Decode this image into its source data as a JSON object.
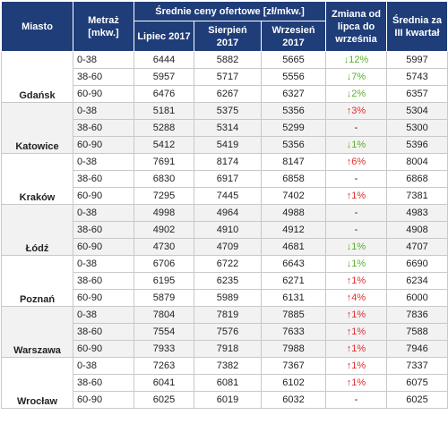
{
  "header": {
    "city": "Miasto",
    "size": "Metraż [mkw.]",
    "prices_group": "Średnie ceny ofertowe [zł/mkw.]",
    "months": [
      "Lipiec 2017",
      "Sierpień 2017",
      "Wrzesień 2017"
    ],
    "change": "Zmiana od lipca do września",
    "average": "Średnia za III kwartał"
  },
  "table": {
    "cities": [
      {
        "name": "Gdańsk",
        "rows": [
          [
            "0-38",
            6444,
            5882,
            5665,
            "↓12%",
            5997
          ],
          [
            "38-60",
            5957,
            5717,
            5556,
            "↓7%",
            5743
          ],
          [
            "60-90",
            6476,
            6267,
            6327,
            "↓2%",
            6357
          ]
        ]
      },
      {
        "name": "Katowice",
        "rows": [
          [
            "0-38",
            5181,
            5375,
            5356,
            "↑3%",
            5304
          ],
          [
            "38-60",
            5288,
            5314,
            5299,
            "-",
            5300
          ],
          [
            "60-90",
            5412,
            5419,
            5356,
            "↓1%",
            5396
          ]
        ]
      },
      {
        "name": "Kraków",
        "rows": [
          [
            "0-38",
            7691,
            8174,
            8147,
            "↑6%",
            8004
          ],
          [
            "38-60",
            6830,
            6917,
            6858,
            "-",
            6868
          ],
          [
            "60-90",
            7295,
            7445,
            7402,
            "↑1%",
            7381
          ]
        ]
      },
      {
        "name": "Łódź",
        "rows": [
          [
            "0-38",
            4998,
            4964,
            4988,
            "-",
            4983
          ],
          [
            "38-60",
            4902,
            4910,
            4912,
            "-",
            4908
          ],
          [
            "60-90",
            4730,
            4709,
            4681,
            "↓1%",
            4707
          ]
        ]
      },
      {
        "name": "Poznań",
        "rows": [
          [
            "0-38",
            6706,
            6722,
            6643,
            "↓1%",
            6690
          ],
          [
            "38-60",
            6195,
            6235,
            6271,
            "↑1%",
            6234
          ],
          [
            "60-90",
            5879,
            5989,
            6131,
            "↑4%",
            6000
          ]
        ]
      },
      {
        "name": "Warszawa",
        "rows": [
          [
            "0-38",
            7804,
            7819,
            7885,
            "↑1%",
            7836
          ],
          [
            "38-60",
            7554,
            7576,
            7633,
            "↑1%",
            7588
          ],
          [
            "60-90",
            7933,
            7918,
            7988,
            "↑1%",
            7946
          ]
        ]
      },
      {
        "name": "Wrocław",
        "rows": [
          [
            "0-38",
            7263,
            7382,
            7367,
            "↑1%",
            7337
          ],
          [
            "38-60",
            6041,
            6081,
            6102,
            "↑1%",
            6075
          ],
          [
            "60-90",
            6025,
            6019,
            6032,
            "-",
            6025
          ]
        ]
      }
    ]
  }
}
